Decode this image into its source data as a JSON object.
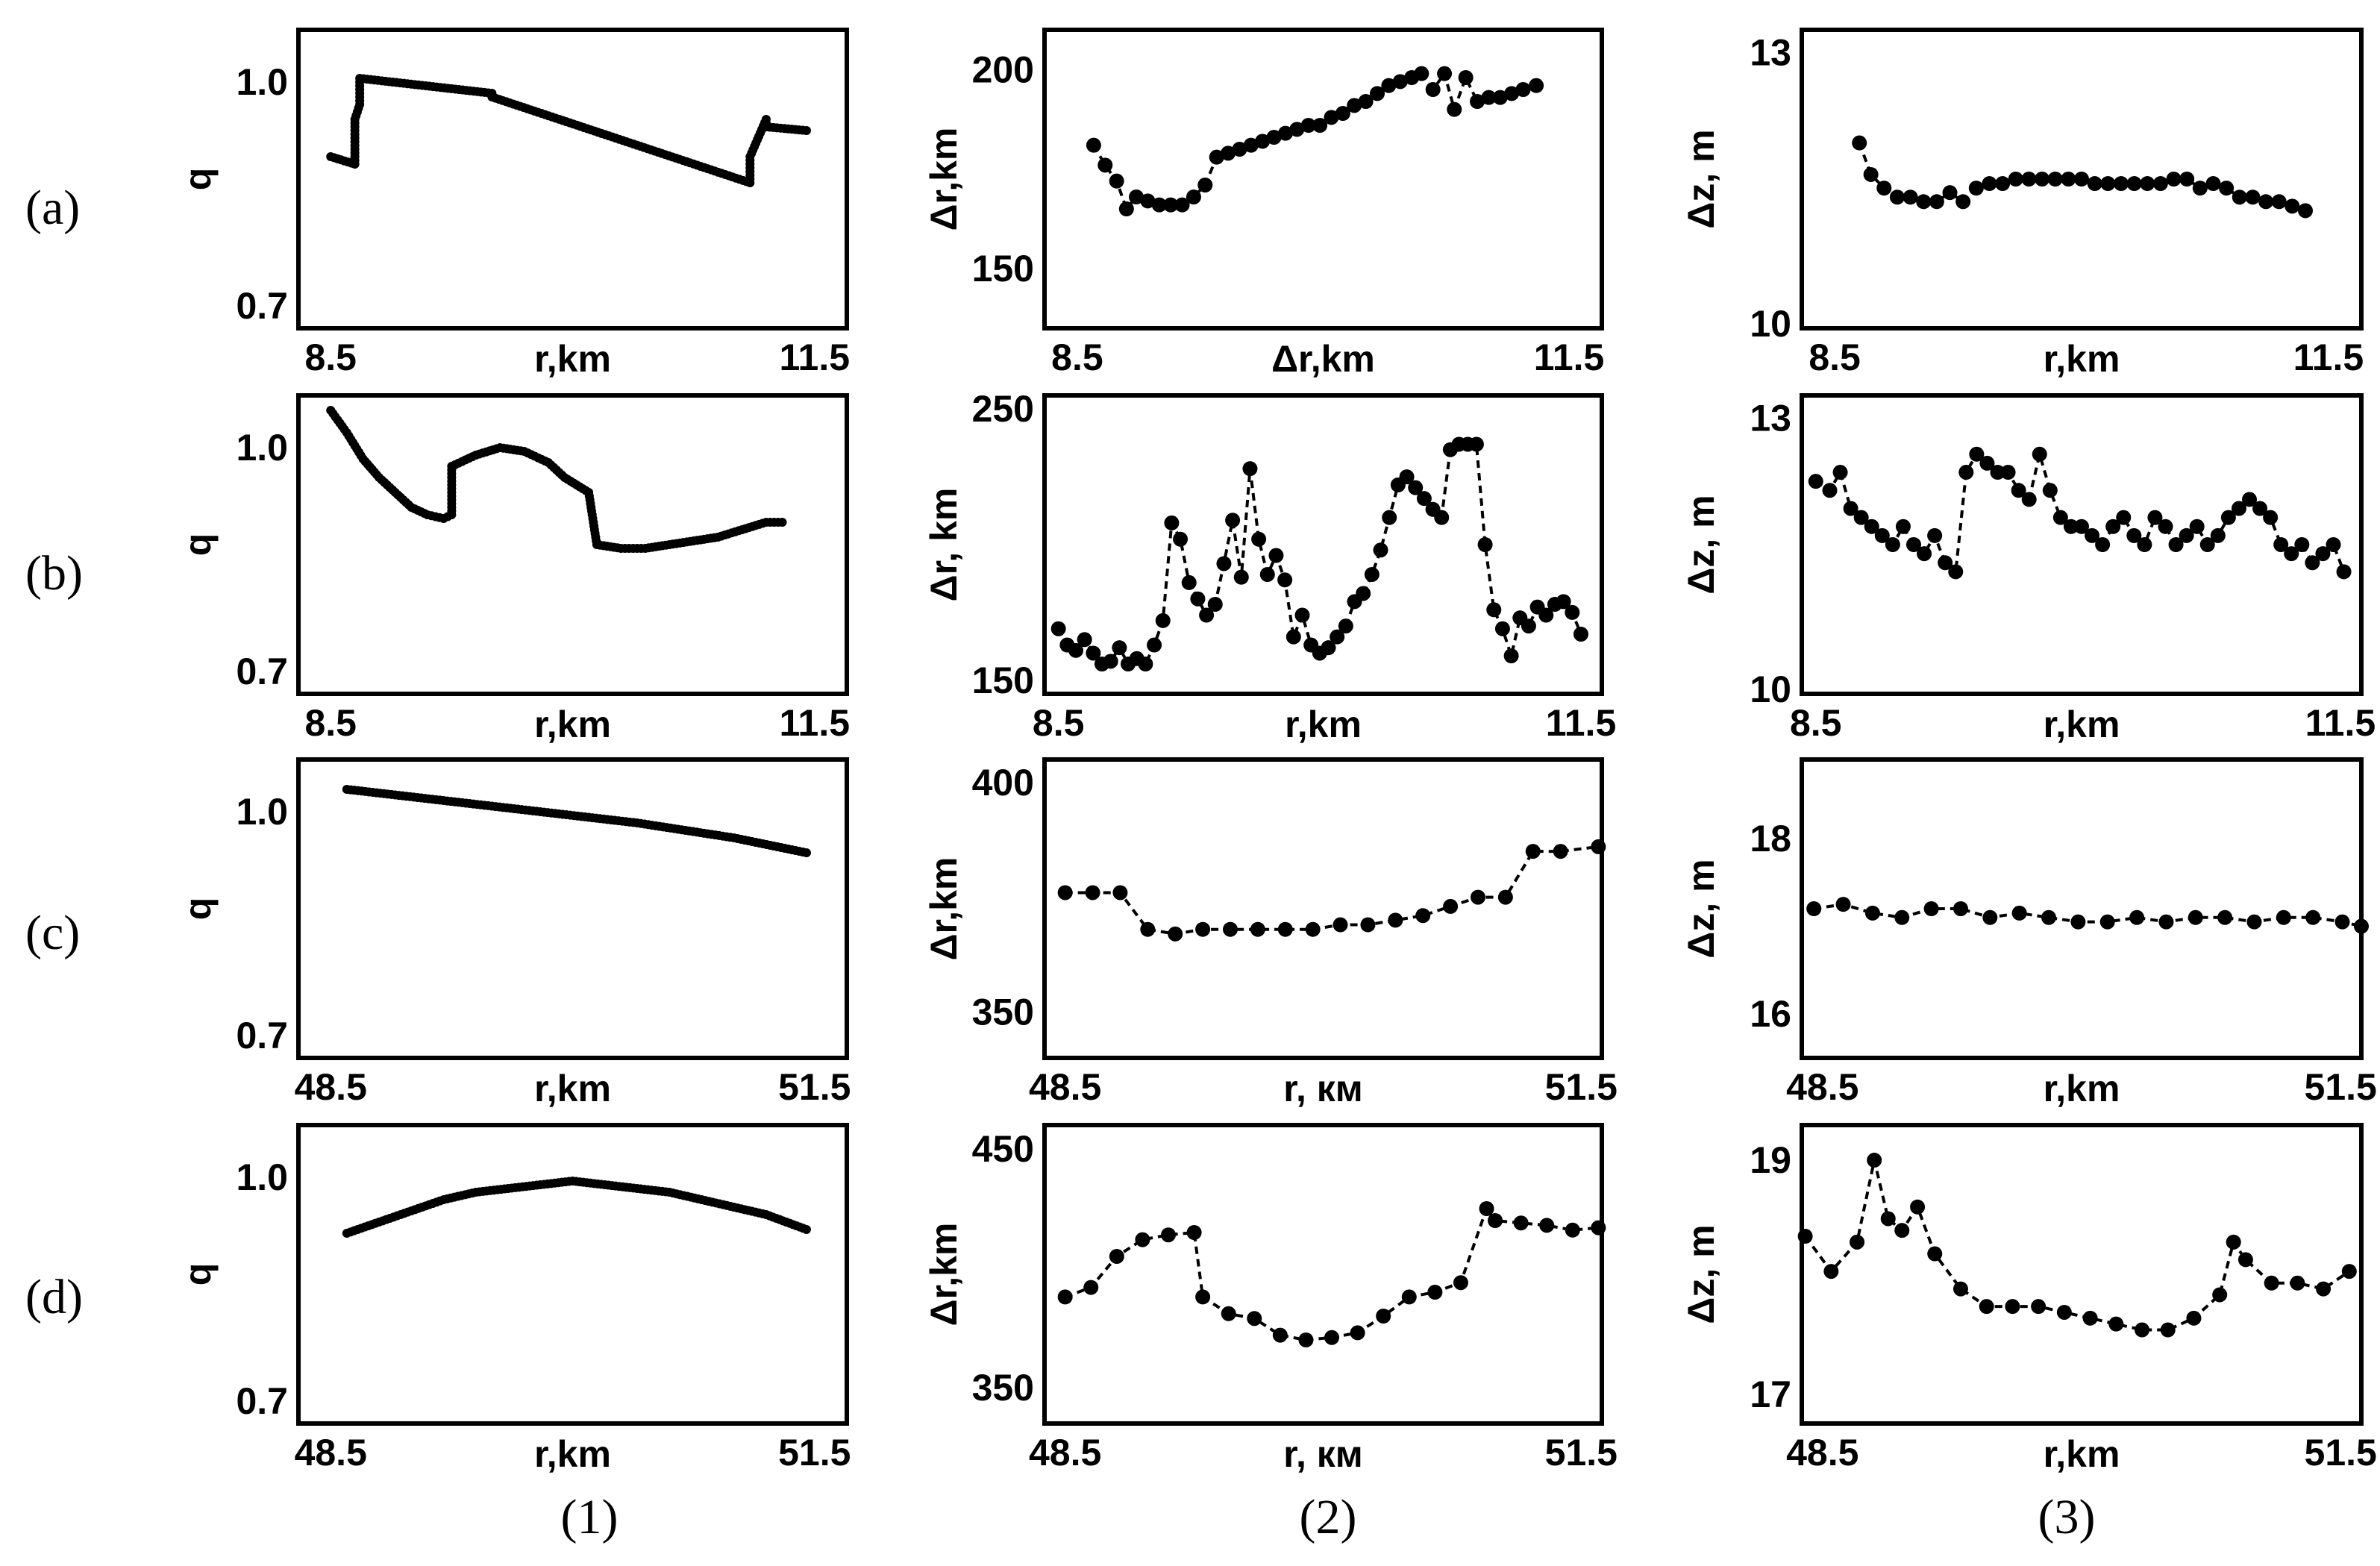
{
  "row_labels": [
    "(a)",
    "(b)",
    "(c)",
    "(d)"
  ],
  "column_labels": [
    "(1)",
    "(2)",
    "(3)"
  ],
  "chart_data": [
    {
      "type": "line",
      "row": 0,
      "col": 0,
      "xlabel": "r,km",
      "ylabel": "q",
      "xlim": [
        8.3,
        11.7
      ],
      "ylim": [
        0.67,
        1.07
      ],
      "xticks": [
        {
          "v": 8.5,
          "label": "8.5"
        },
        {
          "v": 11.5,
          "label": "11.5"
        }
      ],
      "yticks": [
        {
          "v": 0.7,
          "label": "0.7"
        },
        {
          "v": 1.0,
          "label": "1.0"
        }
      ],
      "x": [
        8.5,
        8.65,
        8.65,
        8.68,
        8.68,
        9.5,
        9.5,
        11.1,
        11.1,
        11.2,
        11.2,
        11.45
      ],
      "y": [
        0.9,
        0.89,
        0.95,
        0.97,
        1.005,
        0.985,
        0.98,
        0.865,
        0.9,
        0.95,
        0.94,
        0.935
      ]
    },
    {
      "type": "scatter",
      "row": 0,
      "col": 1,
      "xlabel": "Δr,km",
      "ylabel": "Δr,km",
      "xlim": [
        8.3,
        11.7
      ],
      "ylim": [
        135,
        210
      ],
      "xticks": [
        {
          "v": 8.5,
          "label": "8.5"
        },
        {
          "v": 11.5,
          "label": "11.5"
        }
      ],
      "yticks": [
        {
          "v": 150,
          "label": "150"
        },
        {
          "v": 200,
          "label": "200"
        }
      ],
      "x": [
        8.6,
        8.67,
        8.74,
        8.8,
        8.86,
        8.93,
        9.0,
        9.07,
        9.14,
        9.21,
        9.28,
        9.35,
        9.42,
        9.49,
        9.56,
        9.63,
        9.7,
        9.77,
        9.84,
        9.91,
        9.98,
        10.05,
        10.12,
        10.19,
        10.26,
        10.33,
        10.4,
        10.47,
        10.54,
        10.6,
        10.67,
        10.74,
        10.8,
        10.87,
        10.94,
        11.01,
        11.08,
        11.15,
        11.22,
        11.3
      ],
      "y": [
        181,
        176,
        172,
        165,
        168,
        167,
        166,
        166,
        166,
        168,
        171,
        178,
        179,
        180,
        181,
        182,
        183,
        184,
        185,
        186,
        186,
        188,
        189,
        191,
        192,
        194,
        196,
        197,
        198,
        199,
        195,
        199,
        190,
        198,
        192,
        193,
        193,
        194,
        195,
        196
      ]
    },
    {
      "type": "scatter",
      "row": 0,
      "col": 2,
      "xlabel": "r,km",
      "ylabel": "Δz, m",
      "xlim": [
        8.3,
        11.7
      ],
      "ylim": [
        9.95,
        13.25
      ],
      "xticks": [
        {
          "v": 8.5,
          "label": "8.5"
        },
        {
          "v": 11.5,
          "label": "11.5"
        }
      ],
      "yticks": [
        {
          "v": 10,
          "label": "10"
        },
        {
          "v": 13,
          "label": "13"
        }
      ],
      "x": [
        8.65,
        8.72,
        8.8,
        8.88,
        8.96,
        9.04,
        9.12,
        9.2,
        9.28,
        9.36,
        9.44,
        9.52,
        9.6,
        9.68,
        9.76,
        9.84,
        9.92,
        10.0,
        10.08,
        10.16,
        10.24,
        10.32,
        10.4,
        10.48,
        10.56,
        10.64,
        10.72,
        10.8,
        10.88,
        10.96,
        11.04,
        11.12,
        11.2,
        11.28,
        11.36
      ],
      "y": [
        12.0,
        11.65,
        11.5,
        11.4,
        11.4,
        11.35,
        11.35,
        11.45,
        11.35,
        11.5,
        11.55,
        11.55,
        11.6,
        11.6,
        11.6,
        11.6,
        11.6,
        11.6,
        11.55,
        11.55,
        11.55,
        11.55,
        11.55,
        11.55,
        11.6,
        11.6,
        11.5,
        11.55,
        11.5,
        11.4,
        11.4,
        11.35,
        11.35,
        11.3,
        11.25
      ]
    },
    {
      "type": "line",
      "row": 1,
      "col": 0,
      "xlabel": "r,km",
      "ylabel": "q",
      "xlim": [
        8.3,
        11.7
      ],
      "ylim": [
        0.67,
        1.07
      ],
      "xticks": [
        {
          "v": 8.5,
          "label": "8.5"
        },
        {
          "v": 11.5,
          "label": "11.5"
        }
      ],
      "yticks": [
        {
          "v": 0.7,
          "label": "0.7"
        },
        {
          "v": 1.0,
          "label": "1.0"
        }
      ],
      "x": [
        8.5,
        8.6,
        8.7,
        8.8,
        8.9,
        9.0,
        9.1,
        9.2,
        9.25,
        9.25,
        9.4,
        9.55,
        9.7,
        9.85,
        9.95,
        10.1,
        10.15,
        10.3,
        10.45,
        10.6,
        10.75,
        10.9,
        11.05,
        11.2,
        11.3
      ],
      "y": [
        1.05,
        1.02,
        0.985,
        0.96,
        0.94,
        0.92,
        0.91,
        0.905,
        0.91,
        0.975,
        0.99,
        1.0,
        0.995,
        0.98,
        0.96,
        0.94,
        0.87,
        0.865,
        0.865,
        0.87,
        0.875,
        0.88,
        0.89,
        0.9,
        0.9
      ]
    },
    {
      "type": "scatter",
      "row": 1,
      "col": 1,
      "xlabel": "r,km",
      "ylabel": "Δr, km",
      "xlim": [
        8.42,
        11.62
      ],
      "ylim": [
        145,
        255
      ],
      "xticks": [
        {
          "v": 8.5,
          "label": "8.5"
        },
        {
          "v": 11.5,
          "label": "11.5"
        }
      ],
      "yticks": [
        {
          "v": 150,
          "label": "150"
        },
        {
          "v": 250,
          "label": "250"
        }
      ],
      "x": [
        8.5,
        8.55,
        8.6,
        8.65,
        8.7,
        8.75,
        8.8,
        8.85,
        8.9,
        8.95,
        9.0,
        9.05,
        9.1,
        9.15,
        9.2,
        9.25,
        9.3,
        9.35,
        9.4,
        9.45,
        9.5,
        9.55,
        9.6,
        9.65,
        9.7,
        9.75,
        9.8,
        9.85,
        9.9,
        9.95,
        10.0,
        10.05,
        10.1,
        10.15,
        10.2,
        10.25,
        10.3,
        10.35,
        10.4,
        10.45,
        10.5,
        10.55,
        10.6,
        10.65,
        10.7,
        10.75,
        10.8,
        10.85,
        10.9,
        10.95,
        11.0,
        11.05,
        11.1,
        11.15,
        11.2,
        11.25,
        11.3,
        11.35,
        11.4,
        11.45,
        11.5
      ],
      "y": [
        169,
        163,
        161,
        165,
        160,
        156,
        157,
        162,
        156,
        158,
        156,
        163,
        172,
        208,
        202,
        186,
        180,
        174,
        178,
        193,
        209,
        188,
        228,
        202,
        189,
        196,
        187,
        166,
        174,
        163,
        160,
        162,
        166,
        170,
        179,
        182,
        189,
        198,
        210,
        222,
        225,
        221,
        217,
        213,
        210,
        235,
        237,
        237,
        237,
        200,
        176,
        169,
        159,
        173,
        170,
        177,
        174,
        178,
        179,
        175,
        167
      ]
    },
    {
      "type": "scatter",
      "row": 1,
      "col": 2,
      "xlabel": "r,km",
      "ylabel": "Δz, m",
      "xlim": [
        8.42,
        11.62
      ],
      "ylim": [
        9.95,
        13.25
      ],
      "xticks": [
        {
          "v": 8.5,
          "label": "8.5"
        },
        {
          "v": 11.5,
          "label": "11.5"
        }
      ],
      "yticks": [
        {
          "v": 10,
          "label": "10"
        },
        {
          "v": 13,
          "label": "13"
        }
      ],
      "x": [
        8.5,
        8.58,
        8.64,
        8.7,
        8.76,
        8.82,
        8.88,
        8.94,
        9.0,
        9.06,
        9.12,
        9.18,
        9.24,
        9.3,
        9.36,
        9.42,
        9.48,
        9.54,
        9.6,
        9.66,
        9.72,
        9.78,
        9.84,
        9.9,
        9.96,
        10.02,
        10.08,
        10.14,
        10.2,
        10.26,
        10.32,
        10.38,
        10.44,
        10.5,
        10.56,
        10.62,
        10.68,
        10.74,
        10.8,
        10.86,
        10.92,
        10.98,
        11.04,
        11.1,
        11.16,
        11.22,
        11.28,
        11.34,
        11.4,
        11.46,
        11.52
      ],
      "y": [
        12.3,
        12.2,
        12.4,
        12.0,
        11.9,
        11.8,
        11.7,
        11.6,
        11.8,
        11.6,
        11.5,
        11.7,
        11.4,
        11.3,
        12.4,
        12.6,
        12.5,
        12.4,
        12.4,
        12.2,
        12.1,
        12.6,
        12.2,
        11.9,
        11.8,
        11.8,
        11.7,
        11.6,
        11.8,
        11.9,
        11.7,
        11.6,
        11.9,
        11.8,
        11.6,
        11.7,
        11.8,
        11.6,
        11.7,
        11.9,
        12.0,
        12.1,
        12.0,
        11.9,
        11.6,
        11.5,
        11.6,
        11.4,
        11.5,
        11.6,
        11.3
      ]
    },
    {
      "type": "line",
      "row": 2,
      "col": 0,
      "xlabel": "r,km",
      "ylabel": "q",
      "xlim": [
        48.3,
        51.7
      ],
      "ylim": [
        0.67,
        1.07
      ],
      "xticks": [
        {
          "v": 48.5,
          "label": "48.5"
        },
        {
          "v": 51.5,
          "label": "51.5"
        }
      ],
      "yticks": [
        {
          "v": 0.7,
          "label": "0.7"
        },
        {
          "v": 1.0,
          "label": "1.0"
        }
      ],
      "x": [
        48.6,
        49.2,
        49.8,
        50.4,
        51.0,
        51.45
      ],
      "y": [
        1.03,
        1.015,
        1.0,
        0.985,
        0.965,
        0.945
      ]
    },
    {
      "type": "scatter",
      "row": 2,
      "col": 1,
      "xlabel": "r, км",
      "ylabel": "Δr,km",
      "xlim": [
        48.38,
        51.62
      ],
      "ylim": [
        340,
        405
      ],
      "xticks": [
        {
          "v": 48.5,
          "label": "48.5"
        },
        {
          "v": 51.5,
          "label": "51.5"
        }
      ],
      "yticks": [
        {
          "v": 350,
          "label": "350"
        },
        {
          "v": 400,
          "label": "400"
        }
      ],
      "x": [
        48.5,
        48.66,
        48.82,
        48.98,
        49.14,
        49.3,
        49.46,
        49.62,
        49.78,
        49.94,
        50.1,
        50.26,
        50.42,
        50.58,
        50.74,
        50.9,
        51.06,
        51.22,
        51.38,
        51.6
      ],
      "y": [
        376,
        376,
        376,
        368,
        367,
        368,
        368,
        368,
        368,
        368,
        369,
        369,
        370,
        371,
        373,
        375,
        375,
        385,
        385,
        386
      ]
    },
    {
      "type": "scatter",
      "row": 2,
      "col": 2,
      "xlabel": "r,km",
      "ylabel": "Δz, m",
      "xlim": [
        48.38,
        51.62
      ],
      "ylim": [
        15.5,
        18.9
      ],
      "xticks": [
        {
          "v": 48.5,
          "label": "48.5"
        },
        {
          "v": 51.5,
          "label": "51.5"
        }
      ],
      "yticks": [
        {
          "v": 16,
          "label": "16"
        },
        {
          "v": 18,
          "label": "18"
        }
      ],
      "x": [
        48.45,
        48.62,
        48.79,
        48.96,
        49.13,
        49.3,
        49.47,
        49.64,
        49.81,
        49.98,
        50.15,
        50.32,
        50.49,
        50.66,
        50.83,
        51.0,
        51.17,
        51.34,
        51.51,
        51.62
      ],
      "y": [
        17.2,
        17.25,
        17.15,
        17.1,
        17.2,
        17.2,
        17.1,
        17.15,
        17.1,
        17.05,
        17.05,
        17.1,
        17.05,
        17.1,
        17.1,
        17.05,
        17.1,
        17.1,
        17.05,
        17.0
      ]
    },
    {
      "type": "line",
      "row": 3,
      "col": 0,
      "xlabel": "r,km",
      "ylabel": "q",
      "xlim": [
        48.3,
        51.7
      ],
      "ylim": [
        0.67,
        1.07
      ],
      "xticks": [
        {
          "v": 48.5,
          "label": "48.5"
        },
        {
          "v": 51.5,
          "label": "51.5"
        }
      ],
      "yticks": [
        {
          "v": 0.7,
          "label": "0.7"
        },
        {
          "v": 1.0,
          "label": "1.0"
        }
      ],
      "x": [
        48.6,
        48.8,
        49.0,
        49.2,
        49.4,
        49.6,
        49.8,
        50.0,
        50.2,
        50.4,
        50.6,
        50.8,
        51.0,
        51.2,
        51.45
      ],
      "y": [
        0.925,
        0.94,
        0.955,
        0.97,
        0.98,
        0.985,
        0.99,
        0.995,
        0.99,
        0.985,
        0.98,
        0.97,
        0.96,
        0.95,
        0.93
      ]
    },
    {
      "type": "scatter",
      "row": 3,
      "col": 1,
      "xlabel": "r, км",
      "ylabel": "Δr,km",
      "xlim": [
        48.38,
        51.62
      ],
      "ylim": [
        335,
        460
      ],
      "xticks": [
        {
          "v": 48.5,
          "label": "48.5"
        },
        {
          "v": 51.5,
          "label": "51.5"
        }
      ],
      "yticks": [
        {
          "v": 350,
          "label": "350"
        },
        {
          "v": 450,
          "label": "450"
        }
      ],
      "x": [
        48.5,
        48.65,
        48.8,
        48.95,
        49.1,
        49.25,
        49.3,
        49.45,
        49.6,
        49.75,
        49.9,
        50.05,
        50.2,
        50.35,
        50.5,
        50.65,
        50.8,
        50.95,
        51.0,
        51.15,
        51.3,
        51.45,
        51.6
      ],
      "y": [
        388,
        392,
        405,
        412,
        414,
        415,
        388,
        381,
        379,
        372,
        370,
        371,
        373,
        380,
        388,
        390,
        394,
        425,
        420,
        419,
        418,
        416,
        417
      ]
    },
    {
      "type": "scatter",
      "row": 3,
      "col": 2,
      "xlabel": "r,km",
      "ylabel": "Δz, m",
      "xlim": [
        48.38,
        51.62
      ],
      "ylim": [
        16.75,
        19.3
      ],
      "xticks": [
        {
          "v": 48.5,
          "label": "48.5"
        },
        {
          "v": 51.5,
          "label": "51.5"
        }
      ],
      "yticks": [
        {
          "v": 17,
          "label": "17"
        },
        {
          "v": 19,
          "label": "19"
        }
      ],
      "x": [
        48.4,
        48.55,
        48.7,
        48.8,
        48.88,
        48.96,
        49.05,
        49.15,
        49.3,
        49.45,
        49.6,
        49.75,
        49.9,
        50.05,
        50.2,
        50.35,
        50.5,
        50.65,
        50.8,
        50.88,
        50.95,
        51.1,
        51.25,
        51.4,
        51.55
      ],
      "y": [
        18.35,
        18.05,
        18.3,
        19.0,
        18.5,
        18.4,
        18.6,
        18.2,
        17.9,
        17.75,
        17.75,
        17.75,
        17.7,
        17.65,
        17.6,
        17.55,
        17.55,
        17.65,
        17.85,
        18.3,
        18.15,
        17.95,
        17.95,
        17.9,
        18.05
      ]
    }
  ]
}
